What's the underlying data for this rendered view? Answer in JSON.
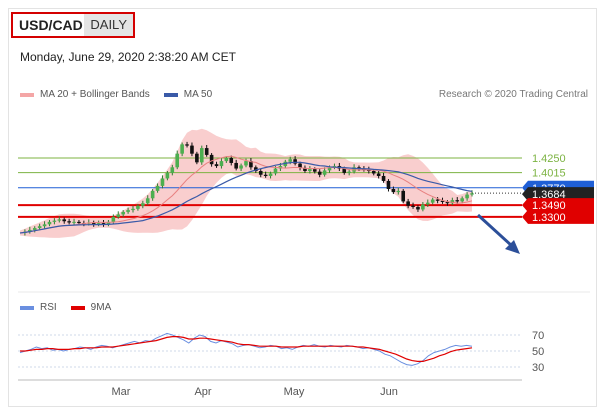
{
  "header": {
    "symbol": "USD/CAD",
    "timeframe": "DAILY"
  },
  "timestamp": "Monday, June 29, 2020 2:38:20 AM CET",
  "legend": {
    "ma20_bb": "MA 20 + Bollinger Bands",
    "ma50": "MA 50",
    "rsi": "RSI",
    "ma9": "9MA"
  },
  "credit": "Research © 2020 Trading Central",
  "colors": {
    "resistance": "#7cb342",
    "support": "#e00000",
    "pivot": "#1f5fd6",
    "ma50": "#3a5aa8",
    "bollinger": "#f4a6a6",
    "rsi": "#6a8fe0",
    "ma9": "#e00000",
    "current": "#222222"
  },
  "chart_data": [
    {
      "type": "candlestick",
      "levels": [
        {
          "label": "1.4250",
          "value": 1.425,
          "kind": "resistance"
        },
        {
          "label": "1.4015",
          "value": 1.4015,
          "kind": "resistance"
        },
        {
          "label": "1.3770",
          "value": 1.377,
          "kind": "pivot"
        },
        {
          "label": "1.3684",
          "value": 1.3684,
          "kind": "current"
        },
        {
          "label": "1.3490",
          "value": 1.349,
          "kind": "support"
        },
        {
          "label": "1.3300",
          "value": 1.33,
          "kind": "support"
        }
      ],
      "x_ticks": [
        "Mar",
        "Apr",
        "May",
        "Jun"
      ],
      "price_path": [
        1.304,
        1.306,
        1.309,
        1.312,
        1.315,
        1.318,
        1.322,
        1.324,
        1.326,
        1.323,
        1.321,
        1.322,
        1.32,
        1.319,
        1.321,
        1.318,
        1.32,
        1.318,
        1.322,
        1.33,
        1.334,
        1.338,
        1.341,
        1.343,
        1.348,
        1.352,
        1.36,
        1.372,
        1.38,
        1.392,
        1.401,
        1.41,
        1.432,
        1.447,
        1.445,
        1.432,
        1.418,
        1.441,
        1.43,
        1.415,
        1.412,
        1.42,
        1.425,
        1.417,
        1.408,
        1.413,
        1.42,
        1.41,
        1.404,
        1.398,
        1.396,
        1.4,
        1.408,
        1.412,
        1.419,
        1.423,
        1.416,
        1.409,
        1.404,
        1.407,
        1.403,
        1.398,
        1.405,
        1.41,
        1.412,
        1.408,
        1.401,
        1.403,
        1.41,
        1.408,
        1.406,
        1.404,
        1.4,
        1.396,
        1.388,
        1.375,
        1.37,
        1.372,
        1.355,
        1.348,
        1.346,
        1.342,
        1.35,
        1.353,
        1.358,
        1.356,
        1.354,
        1.352,
        1.357,
        1.355,
        1.36,
        1.366,
        1.368
      ],
      "annotations": [
        "projected move toward 1.3300"
      ]
    },
    {
      "type": "line",
      "name": "RSI",
      "levels": [
        "70",
        "50",
        "30"
      ],
      "series": [
        {
          "name": "RSI",
          "values": [
            48,
            50,
            52,
            55,
            53,
            54,
            51,
            52,
            50,
            52,
            53,
            55,
            54,
            52,
            55,
            57,
            56,
            54,
            56,
            58,
            60,
            62,
            60,
            63,
            62,
            66,
            69,
            72,
            70,
            67,
            64,
            60,
            66,
            70,
            68,
            62,
            60,
            63,
            61,
            59,
            55,
            57,
            58,
            56,
            54,
            55,
            57,
            56,
            53,
            54,
            52,
            55,
            57,
            56,
            58,
            56,
            55,
            57,
            56,
            55,
            57,
            56,
            55,
            53,
            54,
            52,
            50,
            46,
            44,
            40,
            36,
            33,
            32,
            34,
            38,
            44,
            48,
            50,
            52,
            55,
            57,
            56,
            57,
            56
          ]
        },
        {
          "name": "9MA",
          "values": [
            50,
            50,
            51,
            52,
            52,
            53,
            53,
            52,
            52,
            52,
            53,
            53,
            54,
            54,
            54,
            55,
            55,
            55,
            56,
            57,
            58,
            59,
            60,
            61,
            62,
            63,
            65,
            67,
            68,
            68,
            67,
            65,
            65,
            66,
            66,
            65,
            64,
            63,
            62,
            61,
            59,
            58,
            58,
            57,
            56,
            56,
            56,
            56,
            55,
            55,
            55,
            55,
            56,
            56,
            56,
            56,
            56,
            56,
            56,
            56,
            56,
            56,
            55,
            55,
            54,
            53,
            52,
            50,
            48,
            46,
            43,
            40,
            38,
            37,
            37,
            39,
            41,
            44,
            46,
            49,
            51,
            52,
            53,
            54
          ]
        }
      ]
    }
  ]
}
